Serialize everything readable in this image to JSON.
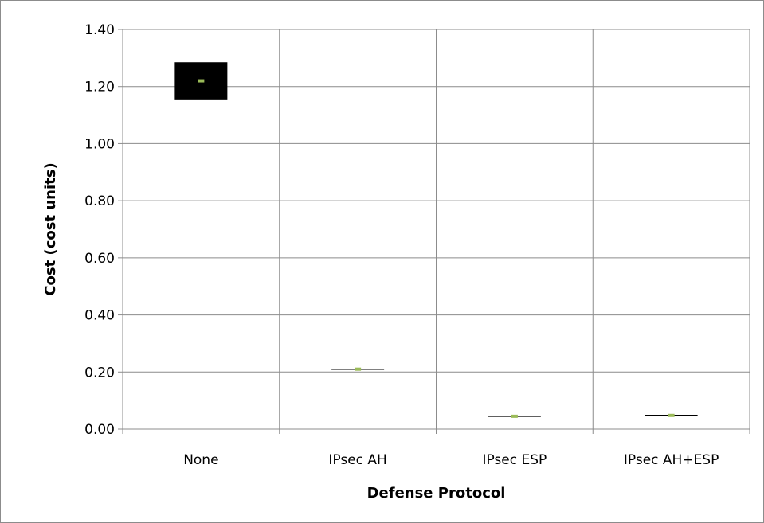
{
  "chart_data": {
    "type": "scatter",
    "title": "",
    "xlabel": "Defense Protocol",
    "ylabel": "Cost (cost units)",
    "categories": [
      "None",
      "IPsec AH",
      "IPsec ESP",
      "IPsec AH+ESP"
    ],
    "ylim": [
      0,
      1.4
    ],
    "yticks": [
      "0.00",
      "0.20",
      "0.40",
      "0.60",
      "0.80",
      "1.00",
      "1.20",
      "1.40"
    ],
    "grid": true,
    "legend": "none",
    "series": [
      {
        "values": [
          1.22,
          0.21,
          0.045,
          0.048
        ],
        "range_low": [
          1.155,
          0.208,
          0.044,
          0.047
        ],
        "range_high": [
          1.285,
          0.212,
          0.046,
          0.049
        ],
        "marker_color": "#9bbb59",
        "box_color": "#000000"
      }
    ]
  }
}
